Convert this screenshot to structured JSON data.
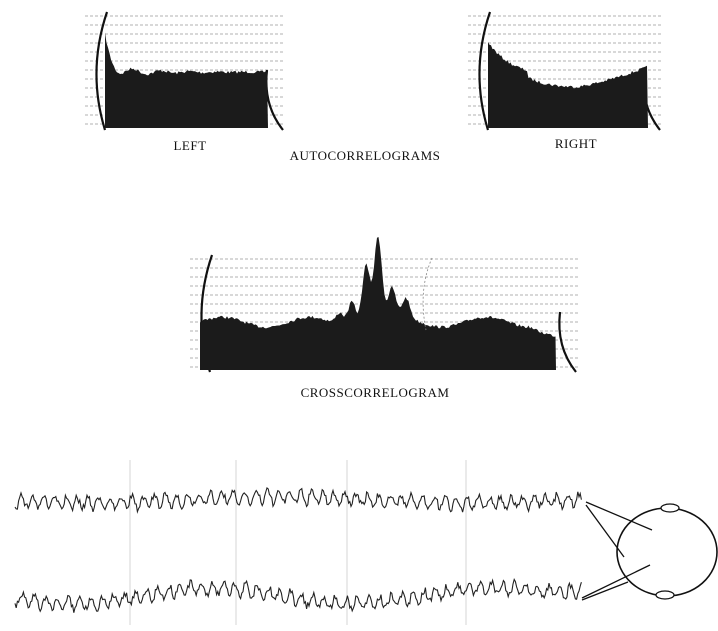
{
  "labels": {
    "left": "LEFT",
    "autocorrelograms": "AUTOCORRELOGRAMS",
    "right": "RIGHT",
    "crosscorrelogram": "CROSSCORRELOGRAM"
  }
}
